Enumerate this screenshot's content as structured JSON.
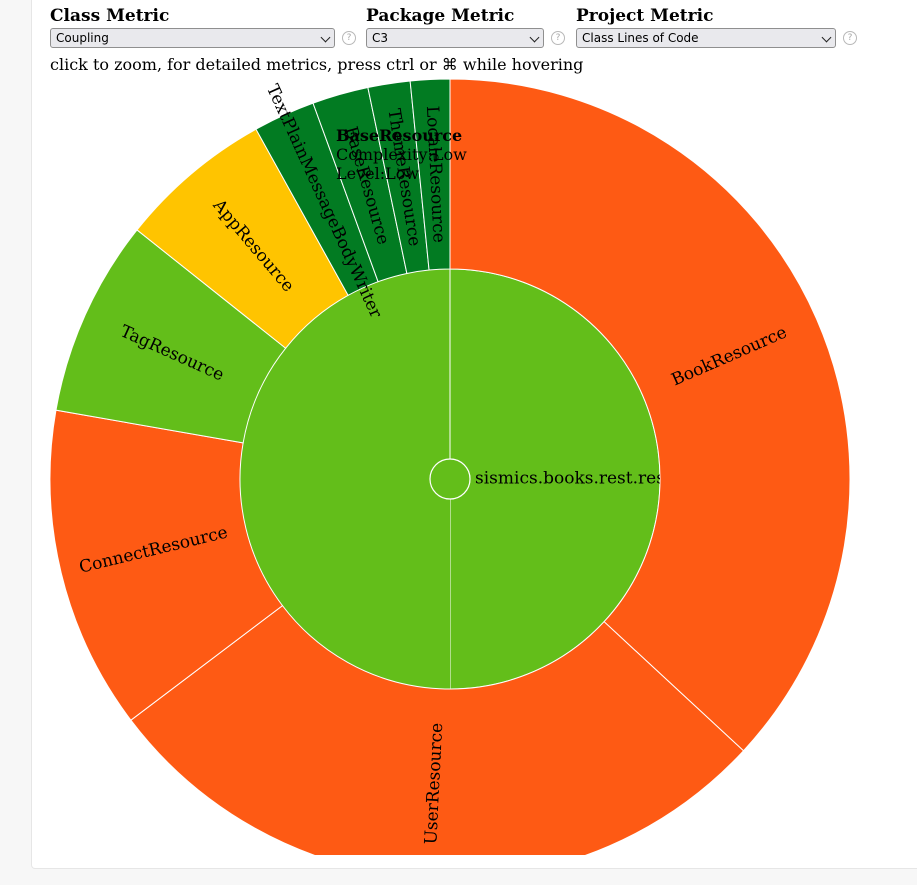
{
  "controls": {
    "class_metric": {
      "label": "Class Metric",
      "selected": "Coupling",
      "help": "?"
    },
    "package_metric": {
      "label": "Package Metric",
      "selected": "C3",
      "help": "?"
    },
    "project_metric": {
      "label": "Project Metric",
      "selected": "Class Lines of Code",
      "help": "?"
    }
  },
  "hint": "click to zoom, for detailed metrics, press ctrl or ⌘ while hovering",
  "colors": {
    "high": "#fe5a14",
    "medium": "#ffc400",
    "low": "#63be1a",
    "very_low": "#027b22"
  },
  "sunburst": {
    "package": {
      "label": "sismics.books.rest.resource",
      "level": "low"
    },
    "classes": [
      {
        "name": "BookResource",
        "loc": 32.5,
        "level": "high"
      },
      {
        "name": "UserResource",
        "loc": 24.5,
        "level": "high"
      },
      {
        "name": "ConnectResource",
        "loc": 11.5,
        "level": "high"
      },
      {
        "name": "TagResource",
        "loc": 7.0,
        "level": "low"
      },
      {
        "name": "AppResource",
        "loc": 5.5,
        "level": "medium"
      },
      {
        "name": "TextPlainMessageBodyWriter",
        "loc": 2.2,
        "level": "very_low"
      },
      {
        "name": "BaseResource",
        "loc": 2.0,
        "level": "very_low"
      },
      {
        "name": "ThemeResource",
        "loc": 1.5,
        "level": "very_low"
      },
      {
        "name": "LocaleResource",
        "loc": 1.4,
        "level": "very_low"
      }
    ]
  },
  "tooltip": {
    "name": "BaseResource",
    "line1": "Complexity:Low",
    "line2": "Level:Low"
  }
}
